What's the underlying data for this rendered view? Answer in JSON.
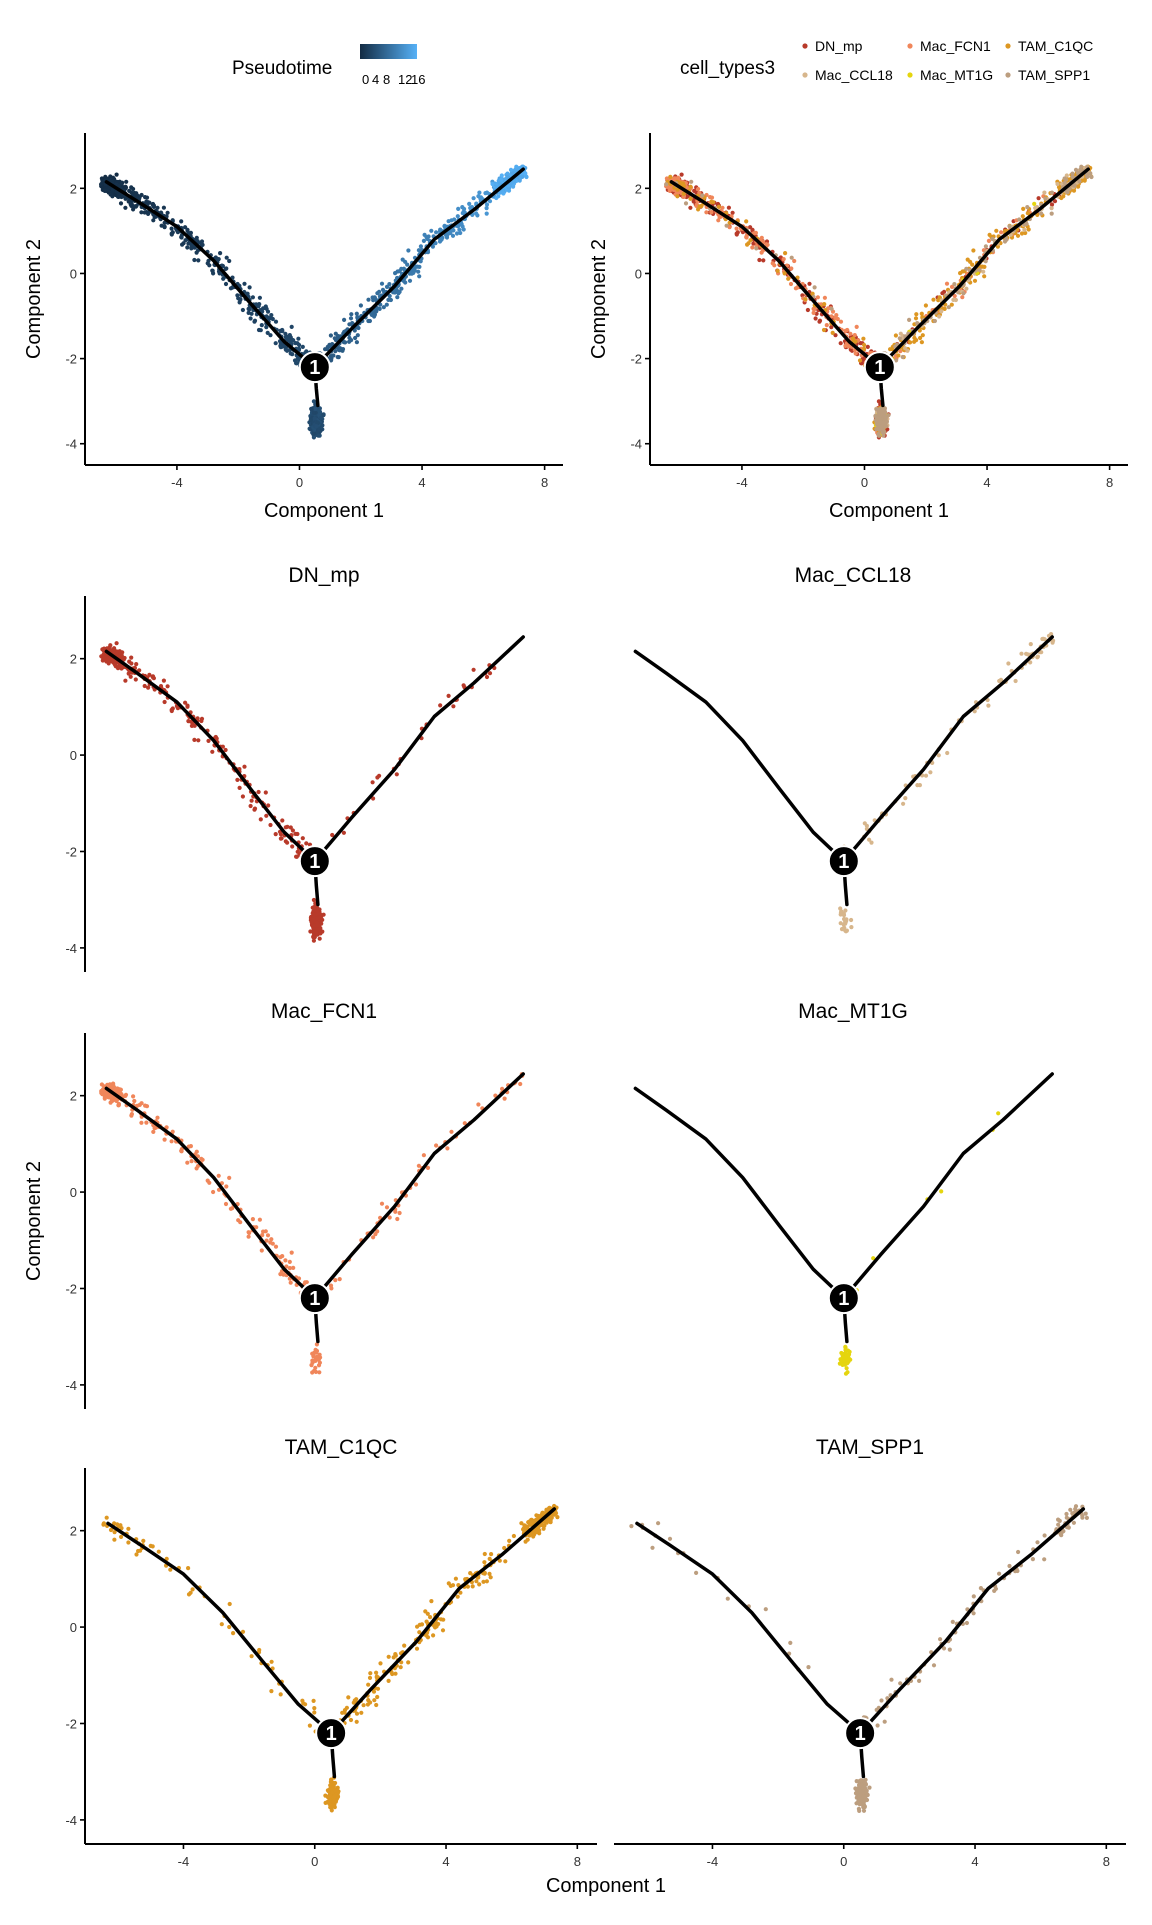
{
  "legends": {
    "pseudotime": {
      "title": "Pseudotime",
      "ticks": [
        "0",
        "4",
        "8",
        "12",
        "16"
      ],
      "range": [
        0,
        17
      ],
      "colors": [
        "#132B43",
        "#56B1F7"
      ]
    },
    "cell_types": {
      "title": "cell_types3",
      "entries": [
        {
          "label": "DN_mp",
          "color": "#B83A2A"
        },
        {
          "label": "Mac_FCN1",
          "color": "#F0865A"
        },
        {
          "label": "TAM_C1QC",
          "color": "#DD9722"
        },
        {
          "label": "Mac_CCL18",
          "color": "#D7B68C"
        },
        {
          "label": "Mac_MT1G",
          "color": "#E5D50E"
        },
        {
          "label": "TAM_SPP1",
          "color": "#BC9E7F"
        }
      ]
    }
  },
  "chart_data": {
    "type": "scatter",
    "xlabel": "Component 1",
    "ylabel": "Component 2",
    "xlim": [
      -7,
      8.6
    ],
    "ylim": [
      -4.5,
      3.3
    ],
    "xticks": [
      -4,
      0,
      4,
      8
    ],
    "yticks": [
      2,
      0,
      -2,
      -4
    ],
    "branch_node": {
      "label": "1",
      "x": 0.5,
      "y": -2.2
    },
    "trajectory": [
      [
        [
          -6.3,
          2.15
        ],
        [
          -5.3,
          1.7
        ],
        [
          -4.0,
          1.1
        ],
        [
          -2.8,
          0.3
        ],
        [
          -1.6,
          -0.7
        ],
        [
          -0.5,
          -1.6
        ],
        [
          0.5,
          -2.2
        ]
      ],
      [
        [
          0.5,
          -2.2
        ],
        [
          1.7,
          -1.3
        ],
        [
          3.1,
          -0.3
        ],
        [
          4.4,
          0.8
        ],
        [
          5.7,
          1.5
        ],
        [
          7.3,
          2.45
        ]
      ],
      [
        [
          0.5,
          -2.2
        ],
        [
          0.55,
          -2.7
        ],
        [
          0.6,
          -3.1
        ]
      ]
    ],
    "panels": [
      {
        "title": "",
        "color_by": "pseudotime",
        "x_axis": "Component 1",
        "y_axis": "Component 2",
        "types": [
          "DN_mp",
          "Mac_FCN1",
          "TAM_C1QC",
          "Mac_CCL18",
          "Mac_MT1G",
          "TAM_SPP1"
        ]
      },
      {
        "title": "",
        "color_by": "cell_types3",
        "x_axis": "Component 1",
        "y_axis": "Component 2",
        "types": [
          "DN_mp",
          "Mac_FCN1",
          "TAM_C1QC",
          "Mac_CCL18",
          "Mac_MT1G",
          "TAM_SPP1"
        ]
      },
      {
        "title": "DN_mp",
        "color_by": "cell_types3",
        "x_axis": "",
        "y_axis": "",
        "types": [
          "DN_mp"
        ]
      },
      {
        "title": "Mac_CCL18",
        "color_by": "cell_types3",
        "x_axis": "",
        "y_axis": "",
        "types": [
          "Mac_CCL18"
        ]
      },
      {
        "title": "Mac_FCN1",
        "color_by": "cell_types3",
        "x_axis": "",
        "y_axis": "Component 2",
        "types": [
          "Mac_FCN1"
        ]
      },
      {
        "title": "Mac_MT1G",
        "color_by": "cell_types3",
        "x_axis": "",
        "y_axis": "",
        "types": [
          "Mac_MT1G"
        ]
      },
      {
        "title": "TAM_C1QC",
        "color_by": "cell_types3",
        "x_axis": "",
        "y_axis": "",
        "types": [
          "TAM_C1QC"
        ]
      },
      {
        "title": "TAM_SPP1",
        "color_by": "cell_types3",
        "x_axis": "",
        "y_axis": "",
        "types": [
          "TAM_SPP1"
        ]
      }
    ],
    "bottom_xlabel": "Component 1",
    "cell_distributions": {
      "DN_mp": {
        "tip_left": 160,
        "branch_left": 180,
        "stem": 220,
        "branch_right": 35
      },
      "Mac_FCN1": {
        "tip_left": 160,
        "branch_left": 150,
        "stem": 25,
        "branch_right": 45,
        "tip_right": 12
      },
      "TAM_C1QC": {
        "tip_left": 12,
        "branch_left": 55,
        "stem": 110,
        "branch_right": 170,
        "tip_right": 170
      },
      "Mac_CCL18": {
        "stem": 25,
        "branch_right": 55,
        "tip_right": 30
      },
      "Mac_MT1G": {
        "stem": 45,
        "branch_right": 6
      },
      "TAM_SPP1": {
        "tip_left": 3,
        "branch_left": 15,
        "stem": 140,
        "branch_right": 75,
        "tip_right": 40
      }
    }
  }
}
